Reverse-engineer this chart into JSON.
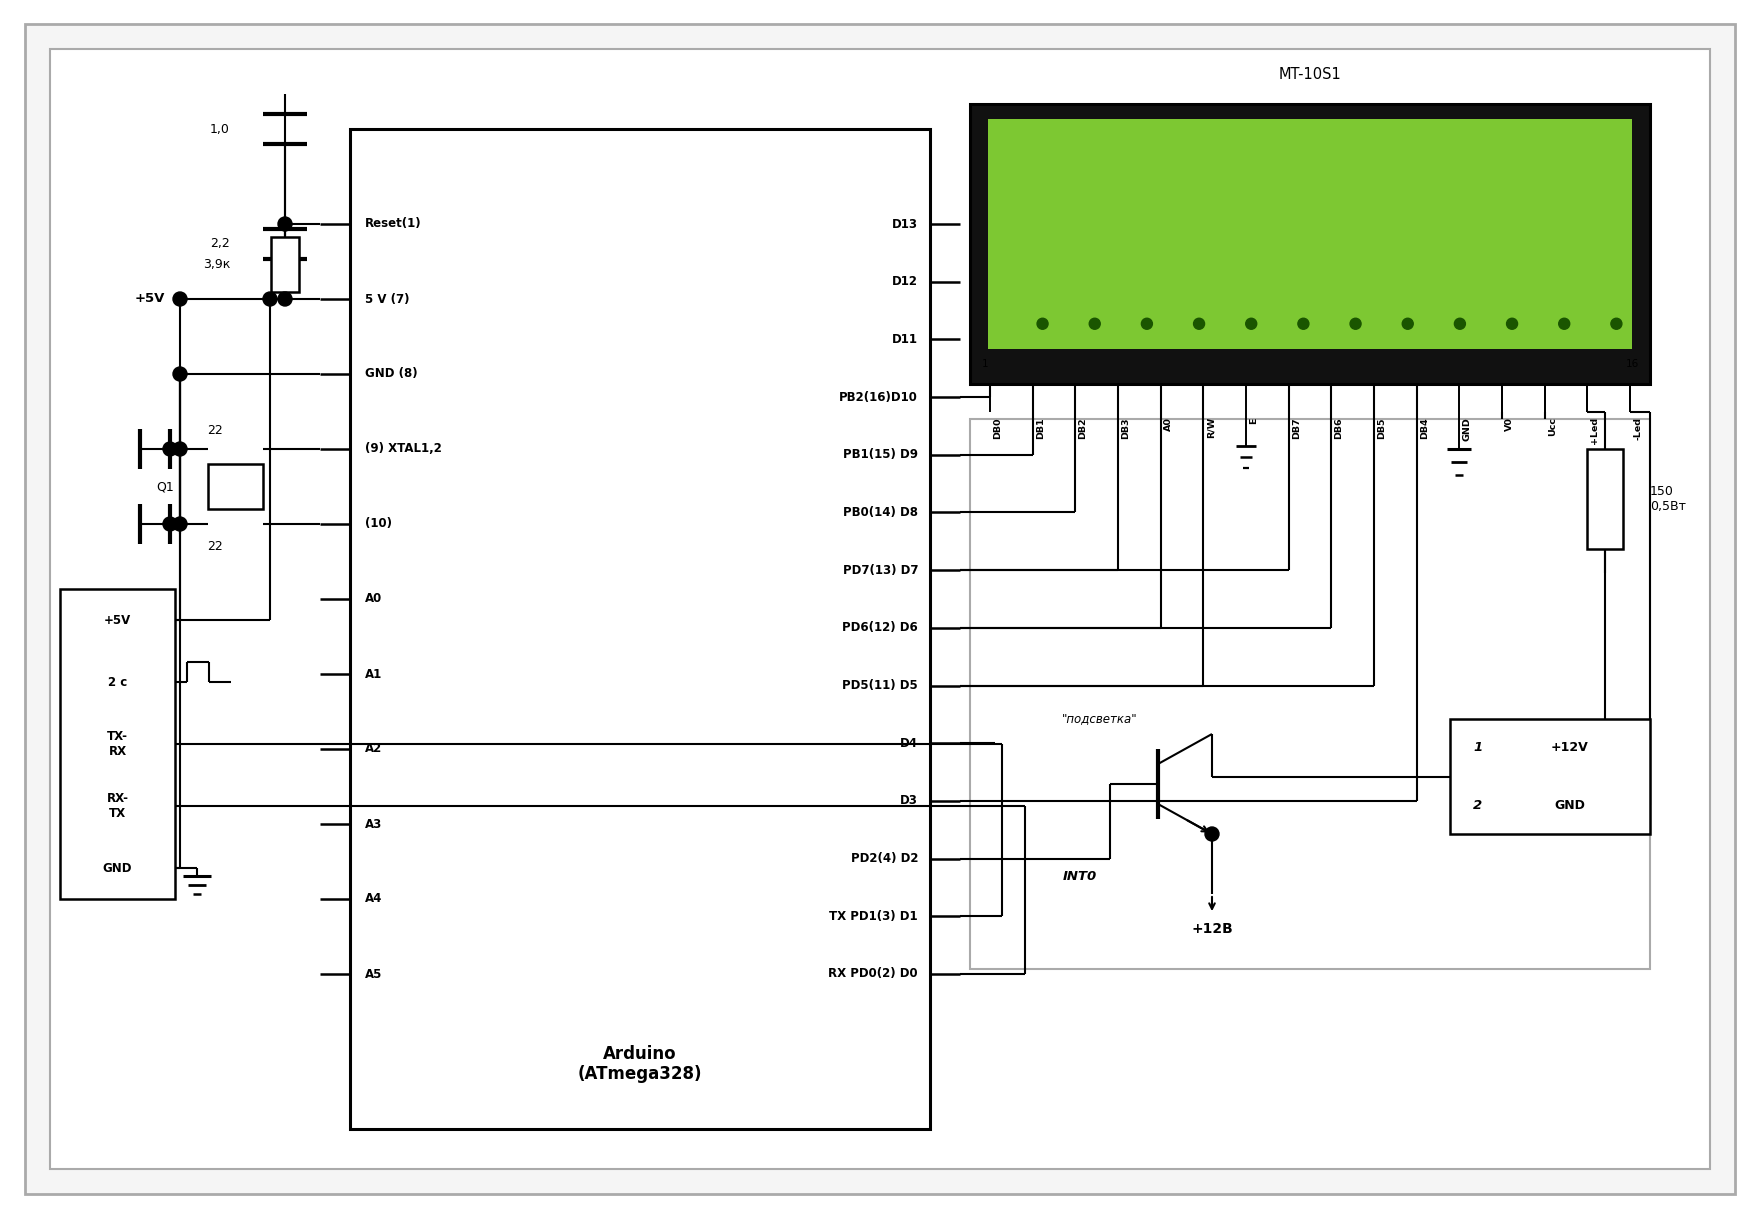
{
  "bg_color": "#ffffff",
  "line_color": "#000000",
  "arduino_label": "Arduino\n(ATmega328)",
  "lcd_label": "MT-10S1",
  "lcd_bg": "#7dc832",
  "lcd_dark": "#111111",
  "lcd_digit_color": "#1a5500",
  "right_pins": [
    "D13",
    "D12",
    "D11",
    "PB2(16)D10",
    "PB1(15) D9",
    "PB0(14) D8",
    "PD7(13) D7",
    "PD6(12) D6",
    "PD5(11) D5",
    "D4",
    "D3",
    "PD2(4) D2",
    "TX PD1(3) D1",
    "RX PD0(2) D0"
  ],
  "left_pins": [
    "Reset(1)",
    "5 V (7)",
    "GND (8)",
    "(9) XTAL1,2",
    "(10)",
    "A0",
    "A1",
    "A2",
    "A3",
    "A4",
    "A5"
  ],
  "lcd_pins": [
    "DB0",
    "DB1",
    "DB2",
    "DB3",
    "A0",
    "R/W",
    "E",
    "DB7",
    "DB6",
    "DB5",
    "DB4",
    "GND",
    "V0",
    "Ucc",
    "+Led",
    "-Led"
  ],
  "connector_labels": [
    "+5V",
    "2 c",
    "TX-\nRX",
    "RX-\nTX",
    "GND"
  ],
  "resistor_label": "150\n0,5Вт",
  "transistor_label": "\"подсветка\"",
  "power_labels": [
    "+12V",
    "GND"
  ],
  "plus12v_label": "+12В",
  "cap_labels_top": [
    "1,0",
    "3,9к",
    "2,2"
  ],
  "cap22_labels": [
    "22",
    "22"
  ],
  "q1_label": "Q1",
  "int0_label": "INT0"
}
